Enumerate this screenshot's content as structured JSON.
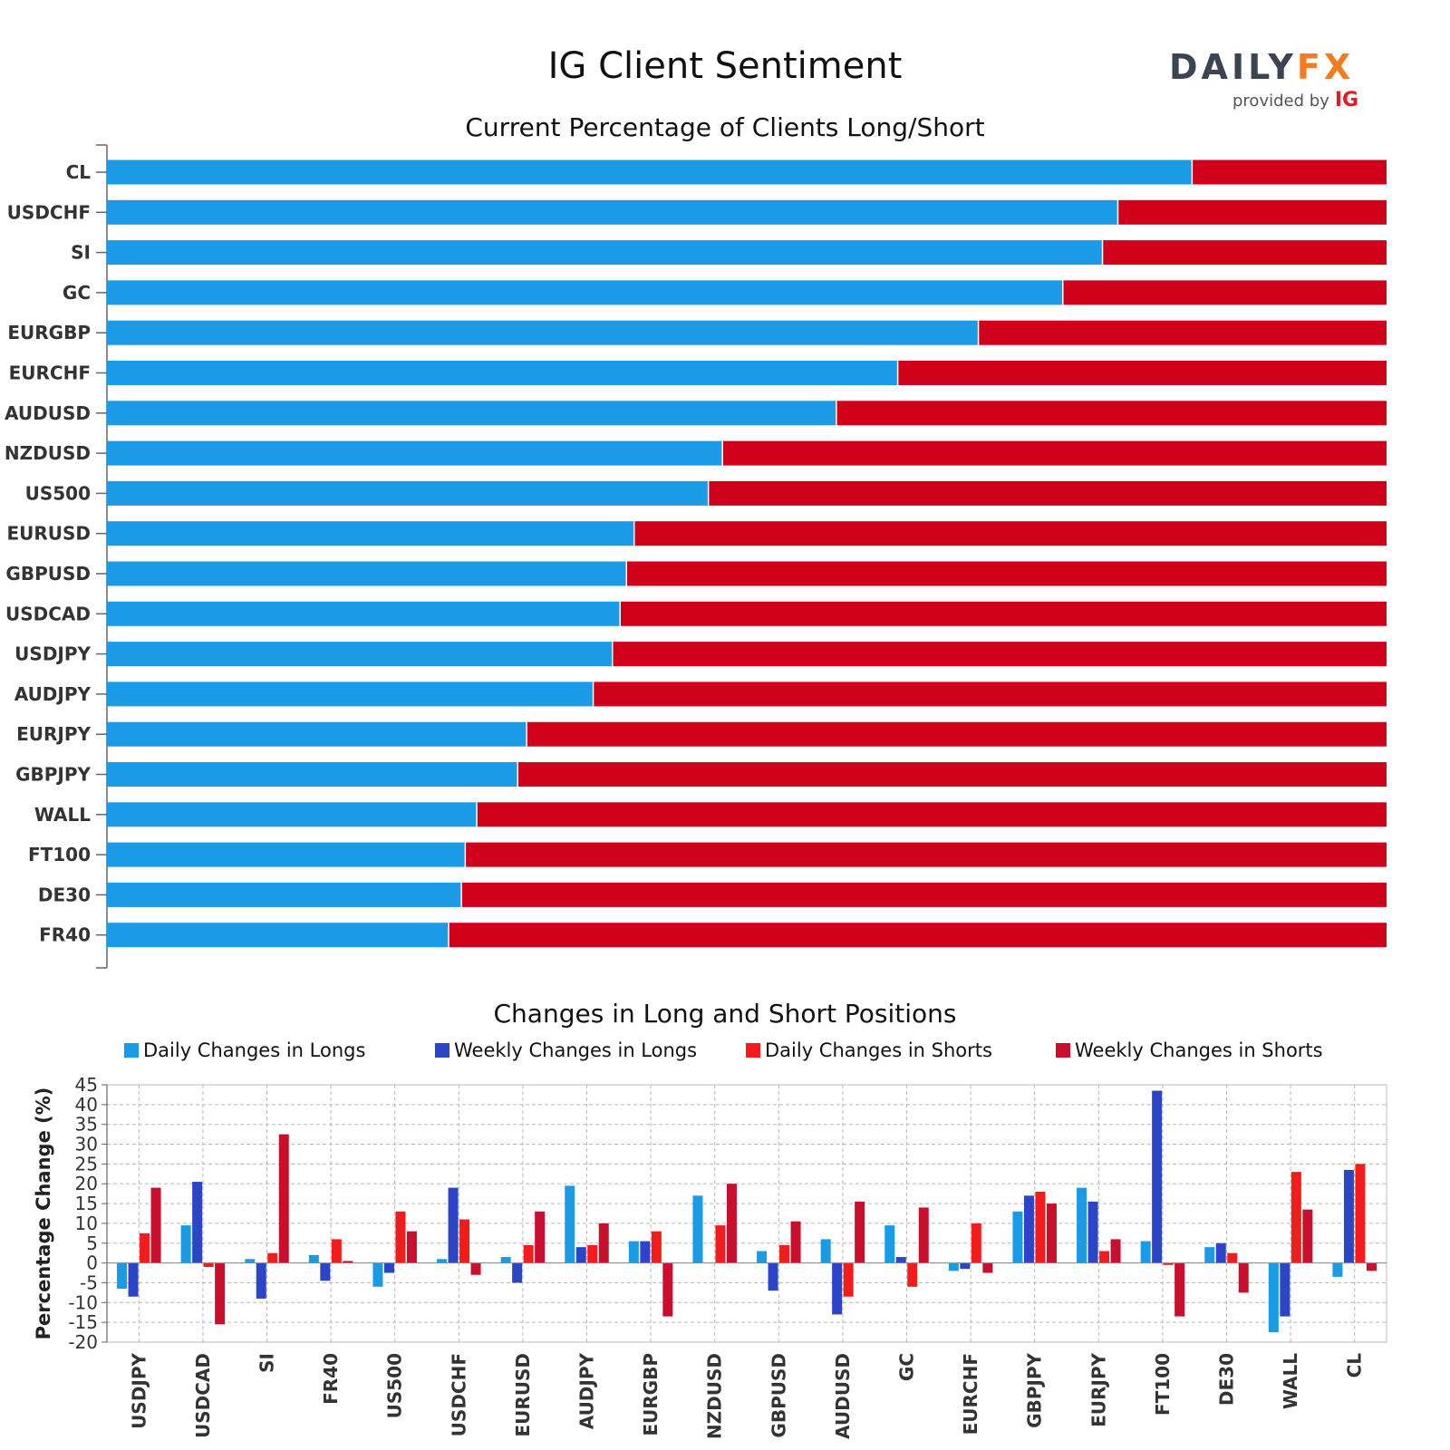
{
  "header": {
    "title": "IG Client Sentiment",
    "logo_main_left": "DAILY",
    "logo_main_right": "FX",
    "logo_sub": "provided by",
    "logo_ig": "IG"
  },
  "colors": {
    "long": "#1b9be6",
    "short": "#d0021b",
    "daily_longs": "#1b9be6",
    "weekly_longs": "#2b45c6",
    "daily_shorts": "#f21c1c",
    "weekly_shorts": "#c8102e"
  },
  "chart_data": [
    {
      "type": "bar",
      "orientation": "horizontal",
      "stacked": true,
      "title": "Current Percentage of Clients Long/Short",
      "categories": [
        "CL",
        "USDCHF",
        "SI",
        "GC",
        "EURGBP",
        "EURCHF",
        "AUDUSD",
        "NZDUSD",
        "US500",
        "EURUSD",
        "GBPUSD",
        "USDCAD",
        "USDJPY",
        "AUDJPY",
        "EURJPY",
        "GBPJPY",
        "WALL",
        "FT100",
        "DE30",
        "FR40"
      ],
      "series": [
        {
          "values": [
            84.8,
            79.0,
            77.8,
            74.7,
            68.1,
            61.8,
            57.0,
            48.1,
            47.0,
            41.2,
            40.6,
            40.1,
            39.5,
            38.0,
            32.8,
            32.1,
            28.9,
            28.0,
            27.7,
            26.7
          ]
        },
        {
          "values": [
            15.2,
            21.0,
            22.2,
            25.3,
            31.9,
            38.2,
            43.0,
            51.9,
            53.0,
            58.8,
            59.4,
            59.9,
            60.5,
            62.0,
            67.2,
            67.9,
            71.1,
            72.0,
            72.3,
            73.3
          ]
        }
      ],
      "xlim": [
        0,
        100
      ]
    },
    {
      "type": "bar",
      "title": "Changes in Long and Short Positions",
      "ylabel": "Percentage Change (%)",
      "ylim": [
        -20,
        45
      ],
      "yticks": [
        45,
        40,
        35,
        30,
        25,
        20,
        15,
        10,
        5,
        0,
        -5,
        -10,
        -15,
        -20
      ],
      "grid": true,
      "legend_position": "top",
      "categories": [
        "USDJPY",
        "USDCAD",
        "SI",
        "FR40",
        "US500",
        "USDCHF",
        "EURUSD",
        "AUDJPY",
        "EURGBP",
        "NZDUSD",
        "GBPUSD",
        "AUDUSD",
        "GC",
        "EURCHF",
        "GBPJPY",
        "EURJPY",
        "FT100",
        "DE30",
        "WALL",
        "CL"
      ],
      "series": [
        {
          "name": "Daily Changes in Longs",
          "values": [
            -6.5,
            9.5,
            1.0,
            2.0,
            -6.0,
            1.0,
            1.5,
            19.5,
            5.5,
            17.0,
            3.0,
            6.0,
            9.5,
            -2.0,
            13.0,
            19.0,
            5.5,
            4.0,
            -17.5,
            -3.5
          ]
        },
        {
          "name": "Weekly Changes in Longs",
          "values": [
            -8.5,
            20.5,
            -9.0,
            -4.5,
            -2.5,
            19.0,
            -5.0,
            4.0,
            5.5,
            0.0,
            -7.0,
            -13.0,
            1.5,
            -1.5,
            17.0,
            15.5,
            43.5,
            5.0,
            -13.5,
            23.5
          ]
        },
        {
          "name": "Daily Changes in Shorts",
          "values": [
            7.5,
            -1.0,
            2.5,
            6.0,
            13.0,
            11.0,
            4.5,
            4.5,
            8.0,
            9.5,
            4.5,
            -8.5,
            -6.0,
            10.0,
            18.0,
            3.0,
            -0.5,
            2.5,
            23.0,
            25.0
          ]
        },
        {
          "name": "Weekly Changes in Shorts",
          "values": [
            19.0,
            -15.5,
            32.5,
            0.5,
            8.0,
            -3.0,
            13.0,
            10.0,
            -13.5,
            20.0,
            10.5,
            15.5,
            14.0,
            -2.5,
            15.0,
            6.0,
            -13.5,
            -7.5,
            13.5,
            -2.0
          ]
        }
      ]
    }
  ]
}
